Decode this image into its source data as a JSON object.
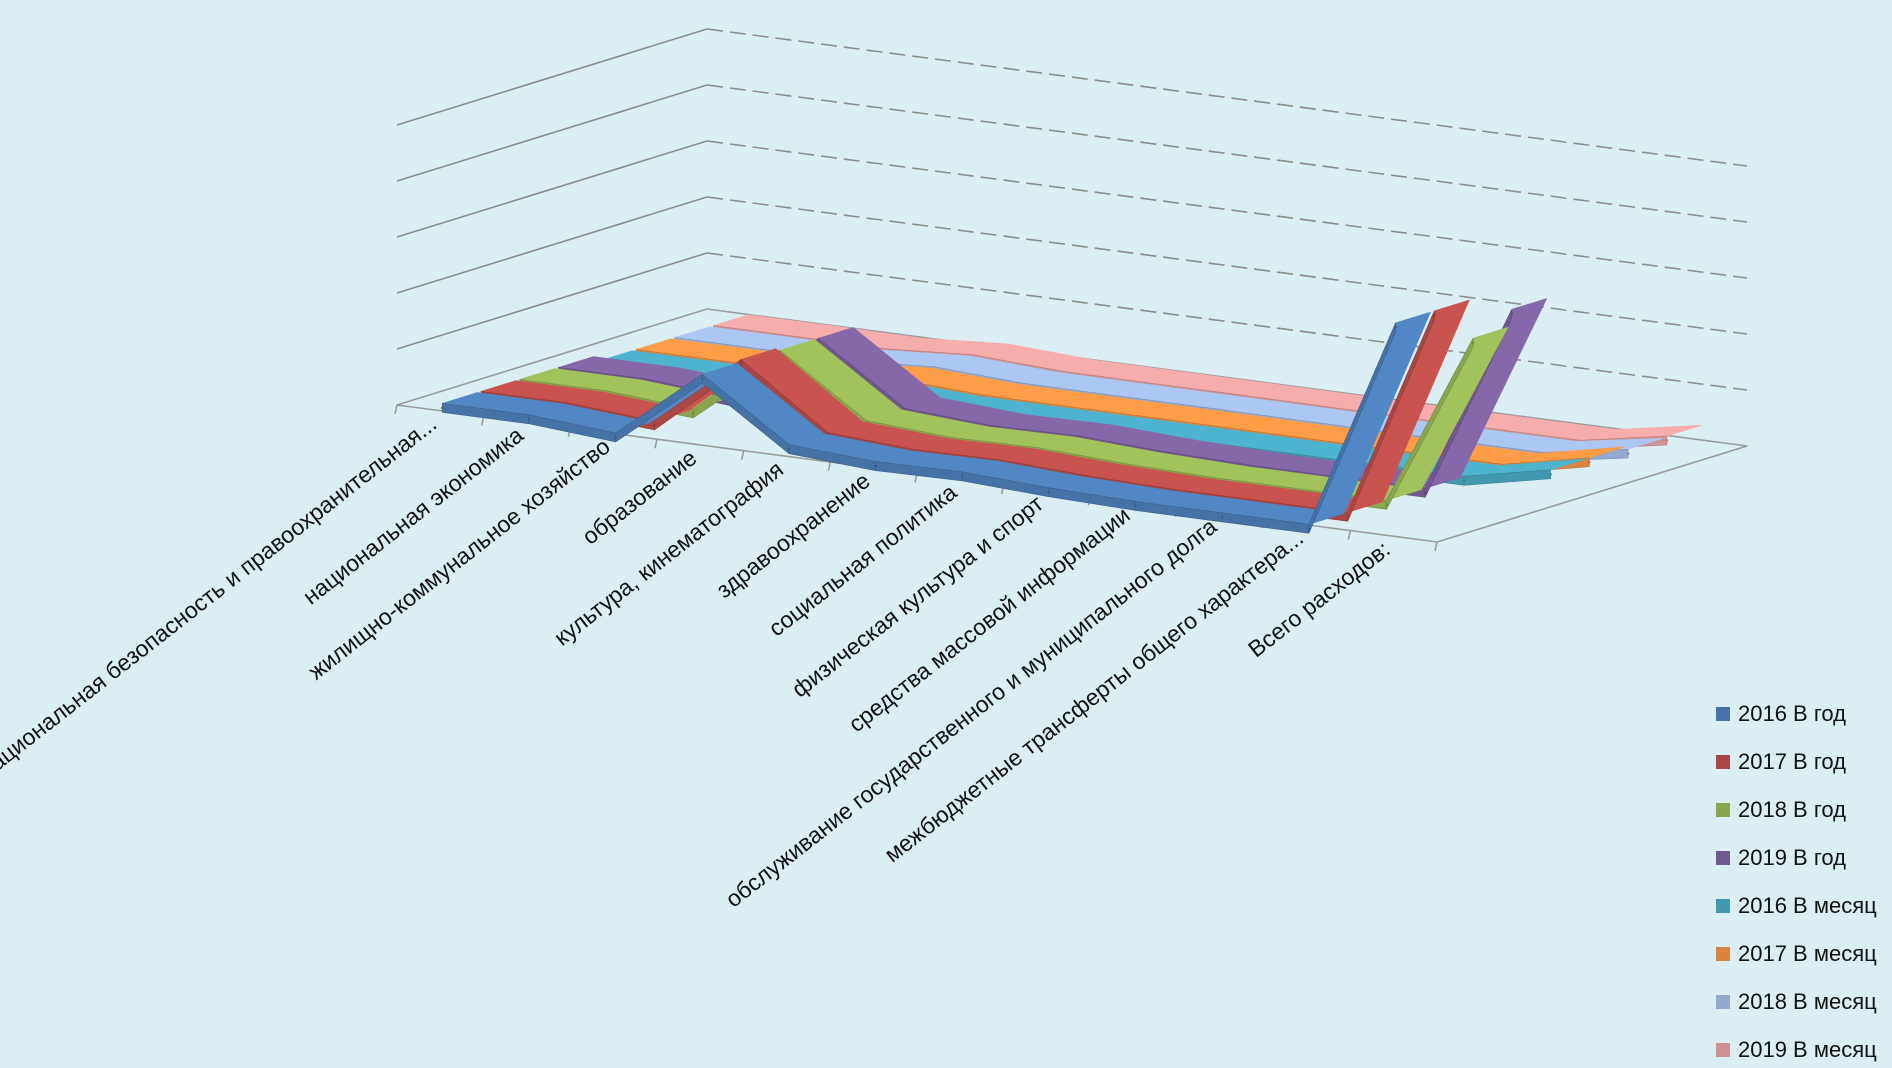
{
  "chart_data": {
    "type": "line",
    "subtype": "3d-line",
    "title": "",
    "categories": [
      "национальная безопасность и правоохранительная...",
      "национальная экономика",
      "жилищно-коммунальное хозяйство",
      "образование",
      "культура, кинематография",
      "здравоохранение",
      "социальная политика",
      "физическая культура и спорт",
      "средства массовой информации",
      "обслуживание государственного и муниципального долга",
      "межбюджетные трансферты общего характера...",
      "Всего расходов:"
    ],
    "ylim": [
      0,
      500
    ],
    "gridlines": true,
    "legend_position": "right",
    "series": [
      {
        "name": "2016 В год",
        "color": "#4572a7",
        "values": [
          12,
          12,
          0,
          125,
          20,
          10,
          12,
          4,
          0,
          0,
          0,
          380
        ]
      },
      {
        "name": "2017 В год",
        "color": "#aa4643",
        "values": [
          12,
          12,
          0,
          130,
          20,
          10,
          12,
          4,
          0,
          0,
          0,
          380
        ]
      },
      {
        "name": "2018 В год",
        "color": "#89a54e",
        "values": [
          12,
          12,
          0,
          125,
          20,
          10,
          12,
          4,
          0,
          0,
          0,
          310
        ]
      },
      {
        "name": "2019 В год",
        "color": "#71588f",
        "values": [
          12,
          12,
          0,
          125,
          20,
          10,
          12,
          4,
          0,
          0,
          0,
          340
        ]
      },
      {
        "name": "2016 В месяц",
        "color": "#4198af",
        "values": [
          1,
          1,
          0,
          10,
          1.5,
          1,
          1,
          0.5,
          0,
          0,
          0,
          32
        ]
      },
      {
        "name": "2017 В месяц",
        "color": "#db843d",
        "values": [
          1,
          1,
          0,
          10,
          1.5,
          1,
          1,
          0.5,
          0,
          0,
          0,
          32
        ]
      },
      {
        "name": "2018 В месяц",
        "color": "#93a9cf",
        "values": [
          1,
          1,
          0,
          10,
          1.5,
          1,
          1,
          0.5,
          0,
          0,
          0,
          26
        ]
      },
      {
        "name": "2019 В месяц",
        "color": "#d19392",
        "values": [
          1,
          1,
          0,
          10,
          1.5,
          1,
          1,
          0.5,
          0,
          0,
          0,
          28
        ]
      }
    ]
  }
}
